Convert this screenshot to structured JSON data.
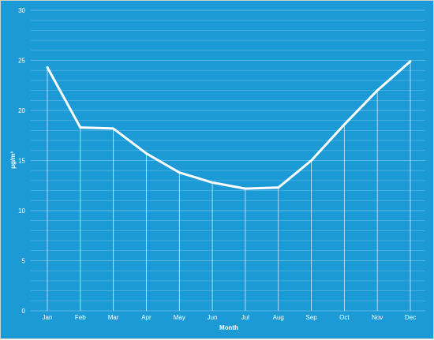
{
  "chart_data": {
    "type": "line",
    "xlabel": "Month",
    "ylabel": "μg/m³",
    "ylim": [
      0,
      30
    ],
    "yticks": [
      0,
      5,
      10,
      15,
      20,
      25,
      30
    ],
    "grid": "horizontal minor lines every 1 unit",
    "categories": [
      "Jan",
      "Feb",
      "Mar",
      "Apr",
      "May",
      "Jun",
      "Jul",
      "Aug",
      "Sep",
      "Oct",
      "Nov",
      "Dec"
    ],
    "series": [
      {
        "values": [
          24.3,
          18.3,
          18.2,
          15.7,
          13.8,
          12.8,
          12.2,
          12.3,
          15.0,
          18.6,
          22.0,
          24.9
        ]
      }
    ],
    "drop_lines": true
  },
  "colors": {
    "background": "#1b9ad6",
    "line": "#ffffff",
    "grid": "#5cb6e4",
    "text": "#ffffff"
  }
}
